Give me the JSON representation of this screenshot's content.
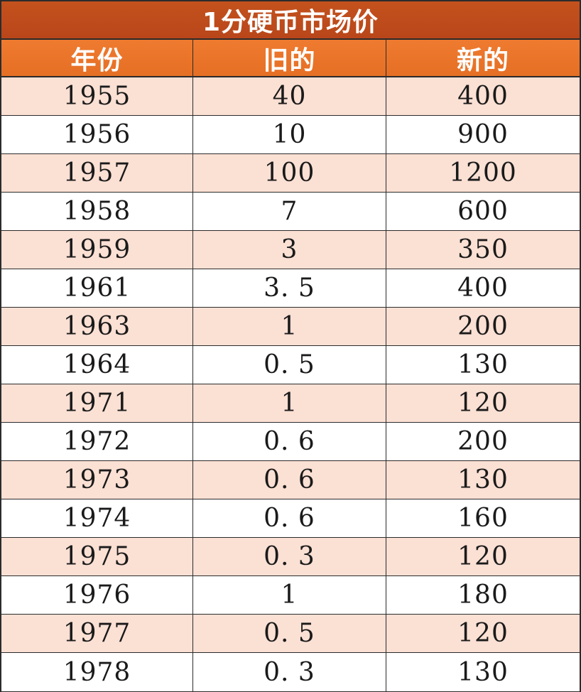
{
  "table": {
    "title": "1分硬币市场价",
    "headers": [
      "年份",
      "旧的",
      "新的"
    ],
    "rows": [
      [
        "1955",
        "40",
        "400"
      ],
      [
        "1956",
        "10",
        "900"
      ],
      [
        "1957",
        "100",
        "1200"
      ],
      [
        "1958",
        "7",
        "600"
      ],
      [
        "1959",
        "3",
        "350"
      ],
      [
        "1961",
        "3. 5",
        "400"
      ],
      [
        "1963",
        "1",
        "200"
      ],
      [
        "1964",
        "0. 5",
        "130"
      ],
      [
        "1971",
        "1",
        "120"
      ],
      [
        "1972",
        "0. 6",
        "200"
      ],
      [
        "1973",
        "0. 6",
        "130"
      ],
      [
        "1974",
        "0. 6",
        "160"
      ],
      [
        "1975",
        "0. 3",
        "120"
      ],
      [
        "1976",
        "1",
        "180"
      ],
      [
        "1977",
        "0. 5",
        "120"
      ],
      [
        "1978",
        "0. 3",
        "130"
      ]
    ]
  },
  "colors": {
    "title_bg": "#c0501c",
    "header_bg": "#ea7429",
    "odd_row_bg": "#fbe0d4",
    "even_row_bg": "#ffffff",
    "grid_line": "#2b2b2b"
  }
}
